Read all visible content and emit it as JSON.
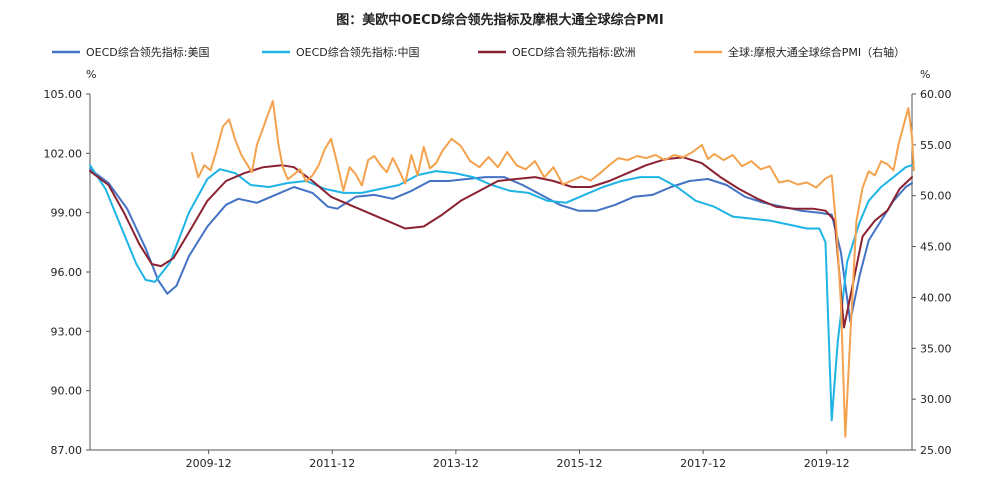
{
  "chart_data": {
    "type": "line",
    "title": "图：美欧中OECD综合领先指标及摩根大通全球综合PMI",
    "left_unit": "%",
    "right_unit": "%",
    "y_left": {
      "min": 87,
      "max": 105,
      "ticks": [
        "87.00",
        "90.00",
        "93.00",
        "96.00",
        "99.00",
        "102.00",
        "105.00"
      ]
    },
    "y_right": {
      "min": 25,
      "max": 60,
      "ticks": [
        "25.00",
        "30.00",
        "35.00",
        "40.00",
        "45.00",
        "50.00",
        "55.00",
        "60.00"
      ]
    },
    "x_range": [
      2008.0,
      2021.3
    ],
    "x_ticks": [
      {
        "label": "2009-12",
        "x": 2009.92
      },
      {
        "label": "2011-12",
        "x": 2011.92
      },
      {
        "label": "2013-12",
        "x": 2013.92
      },
      {
        "label": "2015-12",
        "x": 2015.92
      },
      {
        "label": "2017-12",
        "x": 2017.92
      },
      {
        "label": "2019-12",
        "x": 2019.92
      }
    ],
    "series": [
      {
        "name": "OECD综合领先指标:美国",
        "axis": "left",
        "color": "#4472C4",
        "points": [
          [
            2008.0,
            101.2
          ],
          [
            2008.3,
            100.5
          ],
          [
            2008.6,
            99.2
          ],
          [
            2008.9,
            97.2
          ],
          [
            2009.1,
            95.6
          ],
          [
            2009.25,
            94.9
          ],
          [
            2009.4,
            95.3
          ],
          [
            2009.6,
            96.8
          ],
          [
            2009.9,
            98.3
          ],
          [
            2010.2,
            99.4
          ],
          [
            2010.4,
            99.7
          ],
          [
            2010.7,
            99.5
          ],
          [
            2011.0,
            99.9
          ],
          [
            2011.3,
            100.3
          ],
          [
            2011.6,
            100.0
          ],
          [
            2011.85,
            99.3
          ],
          [
            2012.0,
            99.2
          ],
          [
            2012.3,
            99.8
          ],
          [
            2012.6,
            99.9
          ],
          [
            2012.9,
            99.7
          ],
          [
            2013.2,
            100.1
          ],
          [
            2013.5,
            100.6
          ],
          [
            2013.8,
            100.6
          ],
          [
            2014.1,
            100.7
          ],
          [
            2014.4,
            100.8
          ],
          [
            2014.7,
            100.8
          ],
          [
            2015.0,
            100.4
          ],
          [
            2015.3,
            99.9
          ],
          [
            2015.6,
            99.4
          ],
          [
            2015.9,
            99.1
          ],
          [
            2016.2,
            99.1
          ],
          [
            2016.5,
            99.4
          ],
          [
            2016.8,
            99.8
          ],
          [
            2017.1,
            99.9
          ],
          [
            2017.4,
            100.3
          ],
          [
            2017.7,
            100.6
          ],
          [
            2018.0,
            100.7
          ],
          [
            2018.3,
            100.4
          ],
          [
            2018.6,
            99.8
          ],
          [
            2018.9,
            99.5
          ],
          [
            2019.2,
            99.3
          ],
          [
            2019.5,
            99.1
          ],
          [
            2019.8,
            99.0
          ],
          [
            2020.0,
            98.9
          ],
          [
            2020.15,
            97.0
          ],
          [
            2020.3,
            93.5
          ],
          [
            2020.45,
            95.8
          ],
          [
            2020.6,
            97.6
          ],
          [
            2020.8,
            98.6
          ],
          [
            2021.0,
            99.6
          ],
          [
            2021.2,
            100.3
          ],
          [
            2021.3,
            100.5
          ]
        ]
      },
      {
        "name": "OECD综合领先指标:中国",
        "axis": "left",
        "color": "#1EB4E6",
        "points": [
          [
            2008.0,
            101.4
          ],
          [
            2008.25,
            100.2
          ],
          [
            2008.5,
            98.3
          ],
          [
            2008.75,
            96.4
          ],
          [
            2008.9,
            95.6
          ],
          [
            2009.05,
            95.5
          ],
          [
            2009.3,
            96.5
          ],
          [
            2009.6,
            99.0
          ],
          [
            2009.9,
            100.7
          ],
          [
            2010.1,
            101.2
          ],
          [
            2010.35,
            101.0
          ],
          [
            2010.6,
            100.4
          ],
          [
            2010.9,
            100.3
          ],
          [
            2011.2,
            100.5
          ],
          [
            2011.5,
            100.6
          ],
          [
            2011.8,
            100.2
          ],
          [
            2012.1,
            100.0
          ],
          [
            2012.4,
            100.0
          ],
          [
            2012.7,
            100.2
          ],
          [
            2013.0,
            100.4
          ],
          [
            2013.3,
            100.9
          ],
          [
            2013.6,
            101.1
          ],
          [
            2013.9,
            101.0
          ],
          [
            2014.2,
            100.8
          ],
          [
            2014.5,
            100.4
          ],
          [
            2014.8,
            100.1
          ],
          [
            2015.1,
            100.0
          ],
          [
            2015.4,
            99.6
          ],
          [
            2015.7,
            99.5
          ],
          [
            2016.0,
            99.9
          ],
          [
            2016.3,
            100.3
          ],
          [
            2016.6,
            100.6
          ],
          [
            2016.9,
            100.8
          ],
          [
            2017.2,
            100.8
          ],
          [
            2017.5,
            100.3
          ],
          [
            2017.8,
            99.6
          ],
          [
            2018.1,
            99.3
          ],
          [
            2018.4,
            98.8
          ],
          [
            2018.7,
            98.7
          ],
          [
            2019.0,
            98.6
          ],
          [
            2019.3,
            98.4
          ],
          [
            2019.6,
            98.2
          ],
          [
            2019.8,
            98.2
          ],
          [
            2019.9,
            97.5
          ],
          [
            2020.0,
            88.5
          ],
          [
            2020.1,
            92.5
          ],
          [
            2020.25,
            96.5
          ],
          [
            2020.45,
            98.5
          ],
          [
            2020.6,
            99.6
          ],
          [
            2020.8,
            100.3
          ],
          [
            2021.0,
            100.8
          ],
          [
            2021.2,
            101.3
          ],
          [
            2021.3,
            101.4
          ]
        ]
      },
      {
        "name": "OECD综合领先指标:欧洲",
        "axis": "left",
        "color": "#8B2232",
        "points": [
          [
            2008.0,
            101.1
          ],
          [
            2008.3,
            100.4
          ],
          [
            2008.55,
            99.0
          ],
          [
            2008.8,
            97.4
          ],
          [
            2009.0,
            96.4
          ],
          [
            2009.15,
            96.3
          ],
          [
            2009.35,
            96.7
          ],
          [
            2009.6,
            98.0
          ],
          [
            2009.9,
            99.6
          ],
          [
            2010.2,
            100.6
          ],
          [
            2010.5,
            101.0
          ],
          [
            2010.8,
            101.3
          ],
          [
            2011.1,
            101.4
          ],
          [
            2011.3,
            101.3
          ],
          [
            2011.6,
            100.6
          ],
          [
            2011.9,
            99.8
          ],
          [
            2012.2,
            99.4
          ],
          [
            2012.5,
            99.0
          ],
          [
            2012.8,
            98.6
          ],
          [
            2013.1,
            98.2
          ],
          [
            2013.4,
            98.3
          ],
          [
            2013.7,
            98.9
          ],
          [
            2014.0,
            99.6
          ],
          [
            2014.3,
            100.1
          ],
          [
            2014.6,
            100.6
          ],
          [
            2014.9,
            100.7
          ],
          [
            2015.2,
            100.8
          ],
          [
            2015.5,
            100.6
          ],
          [
            2015.8,
            100.3
          ],
          [
            2016.1,
            100.3
          ],
          [
            2016.4,
            100.6
          ],
          [
            2016.7,
            101.0
          ],
          [
            2017.0,
            101.4
          ],
          [
            2017.3,
            101.7
          ],
          [
            2017.6,
            101.8
          ],
          [
            2017.9,
            101.5
          ],
          [
            2018.2,
            100.8
          ],
          [
            2018.5,
            100.2
          ],
          [
            2018.8,
            99.7
          ],
          [
            2019.1,
            99.3
          ],
          [
            2019.4,
            99.2
          ],
          [
            2019.7,
            99.2
          ],
          [
            2019.9,
            99.1
          ],
          [
            2020.05,
            98.6
          ],
          [
            2020.2,
            93.2
          ],
          [
            2020.35,
            95.5
          ],
          [
            2020.5,
            97.8
          ],
          [
            2020.7,
            98.6
          ],
          [
            2020.9,
            99.1
          ],
          [
            2021.1,
            100.2
          ],
          [
            2021.3,
            100.8
          ]
        ]
      },
      {
        "name": "全球:摩根大通全球综合PMI（右轴）",
        "axis": "right",
        "color": "#F4A24E",
        "points": [
          [
            2009.65,
            54.2
          ],
          [
            2009.75,
            51.8
          ],
          [
            2009.85,
            53.0
          ],
          [
            2009.95,
            52.5
          ],
          [
            2010.05,
            54.5
          ],
          [
            2010.15,
            56.8
          ],
          [
            2010.25,
            57.5
          ],
          [
            2010.35,
            55.5
          ],
          [
            2010.45,
            54.0
          ],
          [
            2010.55,
            53.0
          ],
          [
            2010.62,
            52.3
          ],
          [
            2010.7,
            55.0
          ],
          [
            2010.78,
            56.3
          ],
          [
            2010.88,
            58.0
          ],
          [
            2010.96,
            59.3
          ],
          [
            2011.05,
            55.0
          ],
          [
            2011.12,
            52.8
          ],
          [
            2011.2,
            51.6
          ],
          [
            2011.3,
            52.1
          ],
          [
            2011.4,
            52.6
          ],
          [
            2011.5,
            51.4
          ],
          [
            2011.6,
            52.0
          ],
          [
            2011.7,
            53.0
          ],
          [
            2011.8,
            54.6
          ],
          [
            2011.9,
            55.6
          ],
          [
            2012.0,
            53.2
          ],
          [
            2012.1,
            50.5
          ],
          [
            2012.2,
            52.8
          ],
          [
            2012.3,
            52.1
          ],
          [
            2012.4,
            51.0
          ],
          [
            2012.5,
            53.5
          ],
          [
            2012.6,
            53.9
          ],
          [
            2012.7,
            53.0
          ],
          [
            2012.8,
            52.3
          ],
          [
            2012.9,
            53.7
          ],
          [
            2013.0,
            52.5
          ],
          [
            2013.1,
            51.2
          ],
          [
            2013.2,
            54.0
          ],
          [
            2013.3,
            52.0
          ],
          [
            2013.4,
            54.8
          ],
          [
            2013.5,
            52.7
          ],
          [
            2013.6,
            53.2
          ],
          [
            2013.7,
            54.4
          ],
          [
            2013.85,
            55.6
          ],
          [
            2014.0,
            54.9
          ],
          [
            2014.15,
            53.4
          ],
          [
            2014.3,
            52.8
          ],
          [
            2014.45,
            53.8
          ],
          [
            2014.6,
            52.8
          ],
          [
            2014.75,
            54.3
          ],
          [
            2014.9,
            53.0
          ],
          [
            2015.05,
            52.6
          ],
          [
            2015.2,
            53.4
          ],
          [
            2015.35,
            51.8
          ],
          [
            2015.5,
            52.8
          ],
          [
            2015.65,
            51.1
          ],
          [
            2015.8,
            51.5
          ],
          [
            2015.95,
            51.9
          ],
          [
            2016.1,
            51.5
          ],
          [
            2016.25,
            52.2
          ],
          [
            2016.4,
            53.0
          ],
          [
            2016.55,
            53.7
          ],
          [
            2016.7,
            53.5
          ],
          [
            2016.85,
            53.9
          ],
          [
            2017.0,
            53.7
          ],
          [
            2017.15,
            54.0
          ],
          [
            2017.3,
            53.5
          ],
          [
            2017.45,
            54.0
          ],
          [
            2017.6,
            53.8
          ],
          [
            2017.75,
            54.3
          ],
          [
            2017.9,
            55.0
          ],
          [
            2018.0,
            53.6
          ],
          [
            2018.1,
            54.1
          ],
          [
            2018.25,
            53.5
          ],
          [
            2018.4,
            54.0
          ],
          [
            2018.55,
            52.9
          ],
          [
            2018.7,
            53.4
          ],
          [
            2018.85,
            52.6
          ],
          [
            2019.0,
            52.9
          ],
          [
            2019.15,
            51.3
          ],
          [
            2019.3,
            51.5
          ],
          [
            2019.45,
            51.1
          ],
          [
            2019.6,
            51.3
          ],
          [
            2019.75,
            50.8
          ],
          [
            2019.9,
            51.7
          ],
          [
            2020.0,
            52.0
          ],
          [
            2020.08,
            46.5
          ],
          [
            2020.15,
            39.5
          ],
          [
            2020.22,
            26.3
          ],
          [
            2020.3,
            36.0
          ],
          [
            2020.4,
            47.5
          ],
          [
            2020.5,
            50.8
          ],
          [
            2020.6,
            52.4
          ],
          [
            2020.7,
            52.0
          ],
          [
            2020.8,
            53.4
          ],
          [
            2020.9,
            53.1
          ],
          [
            2021.0,
            52.5
          ],
          [
            2021.08,
            55.0
          ],
          [
            2021.16,
            56.8
          ],
          [
            2021.24,
            58.6
          ],
          [
            2021.3,
            55.8
          ],
          [
            2021.33,
            52.5
          ]
        ]
      }
    ]
  }
}
